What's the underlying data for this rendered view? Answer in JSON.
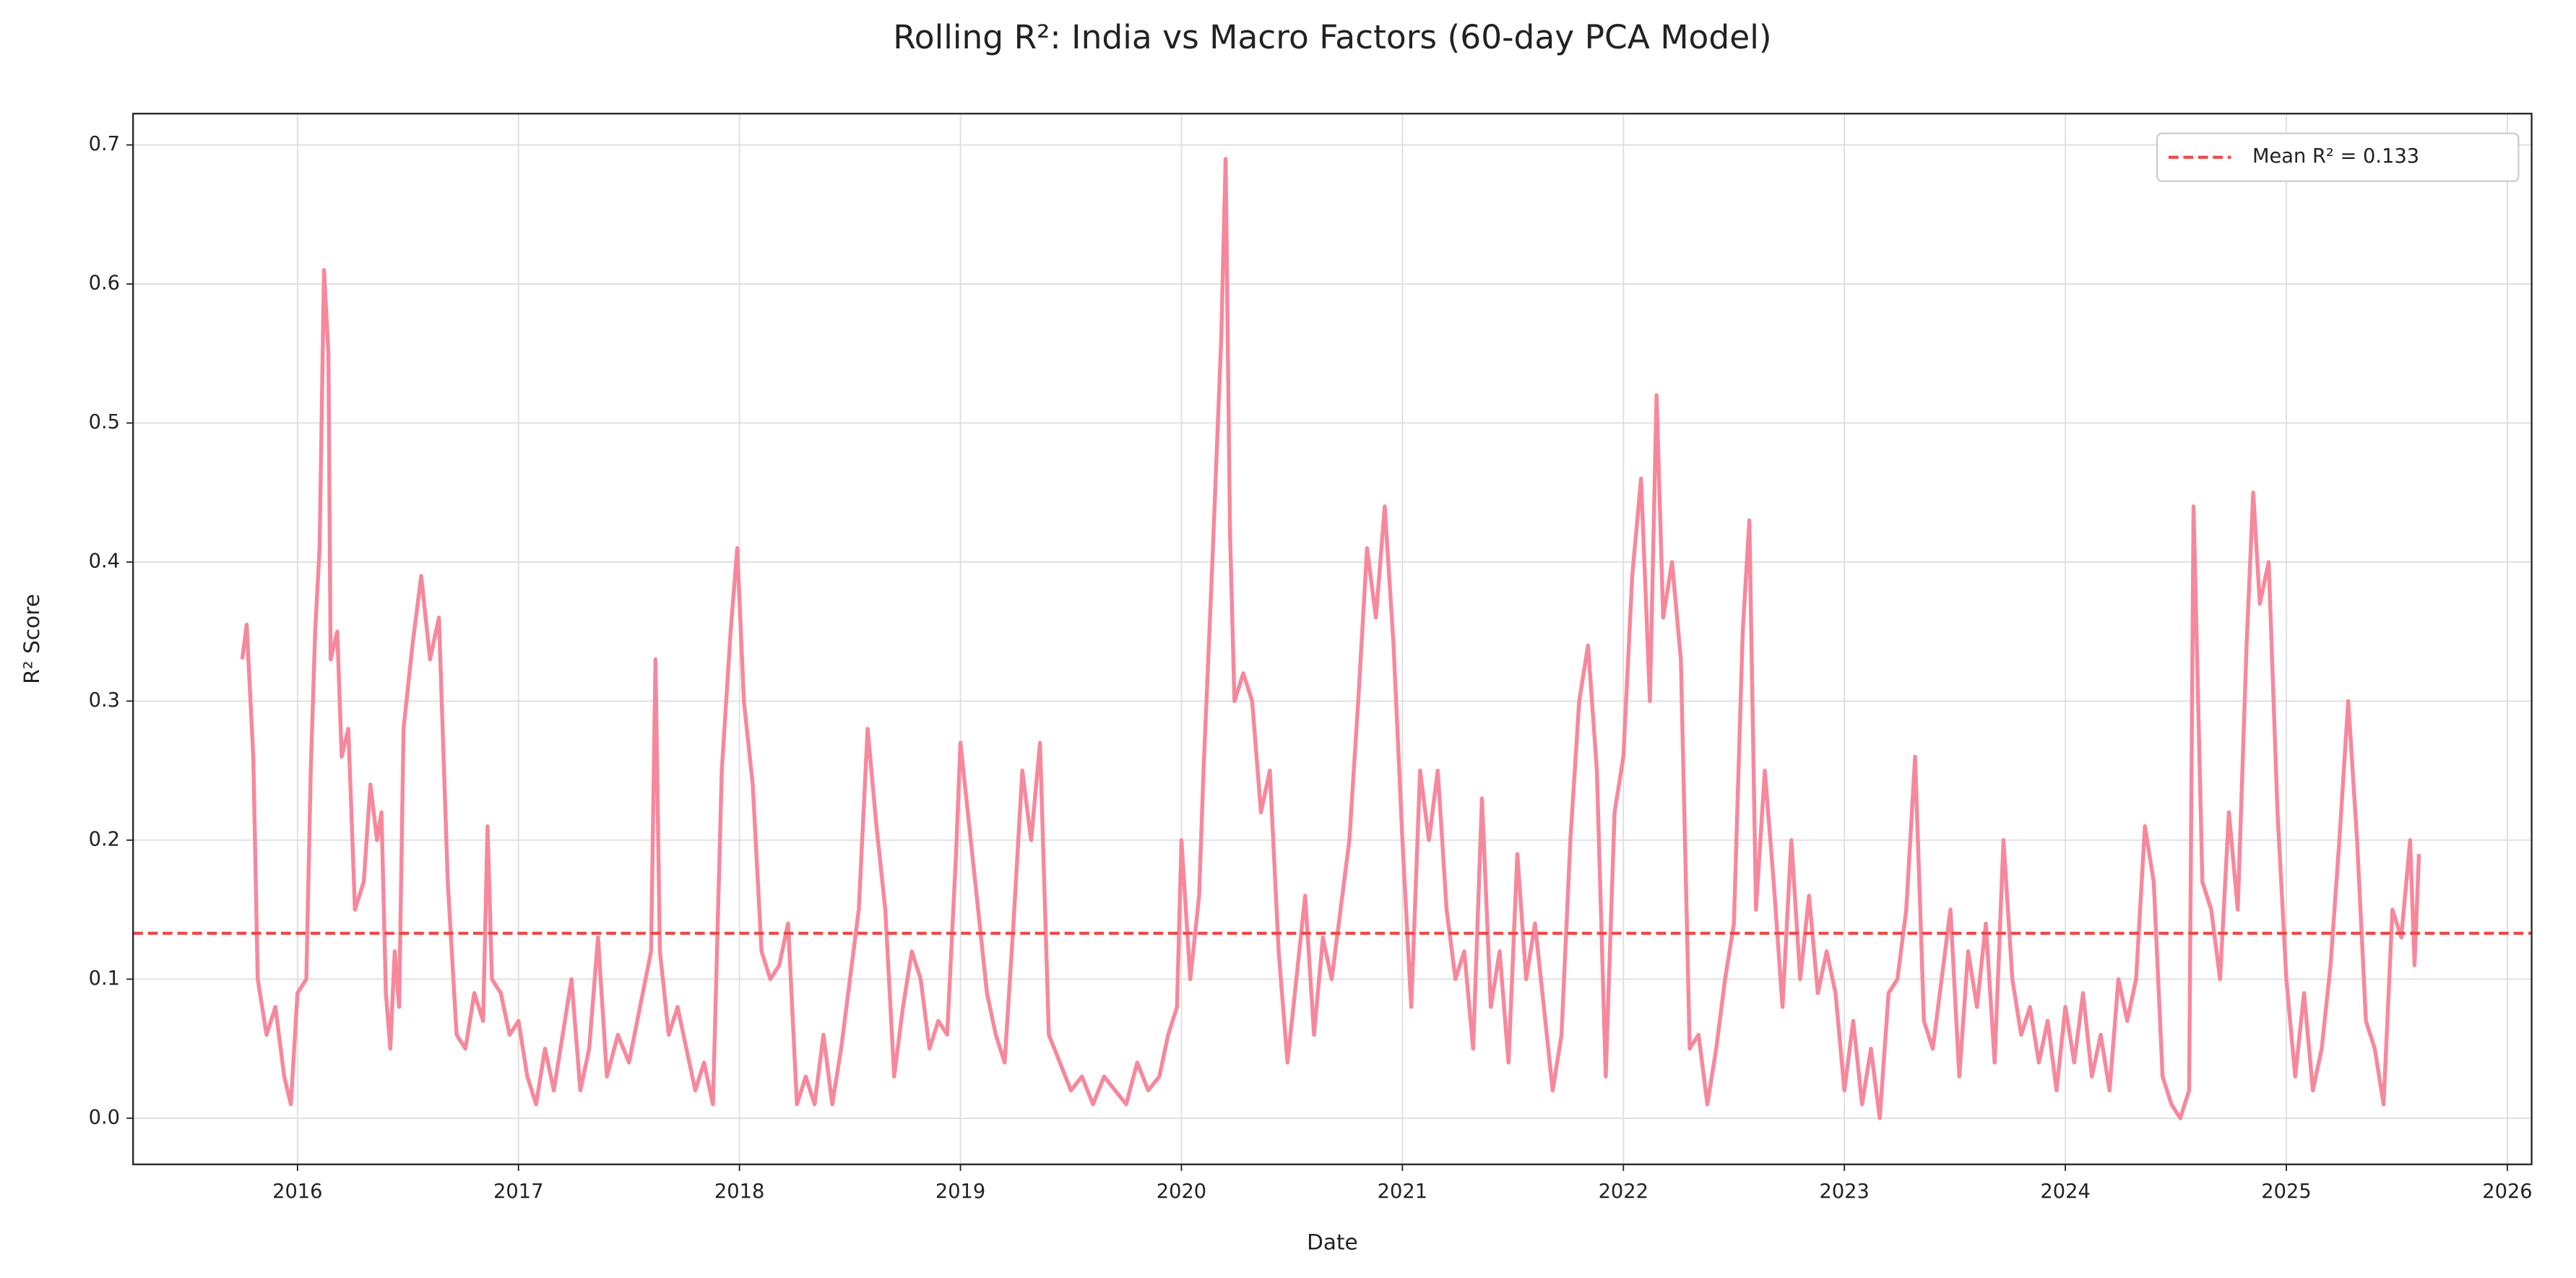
{
  "chart_data": {
    "type": "line",
    "title": "Rolling R²: India vs Macro Factors (60-day PCA Model)",
    "x_label": "Date",
    "y_label": "R² Score",
    "x": [
      2015.75,
      2015.77,
      2015.8,
      2015.82,
      2015.86,
      2015.9,
      2015.94,
      2015.97,
      2016.0,
      2016.04,
      2016.06,
      2016.08,
      2016.1,
      2016.12,
      2016.14,
      2016.15,
      2016.18,
      2016.2,
      2016.23,
      2016.26,
      2016.3,
      2016.33,
      2016.36,
      2016.38,
      2016.4,
      2016.42,
      2016.44,
      2016.46,
      2016.48,
      2016.52,
      2016.56,
      2016.6,
      2016.64,
      2016.68,
      2016.72,
      2016.76,
      2016.8,
      2016.84,
      2016.86,
      2016.88,
      2016.92,
      2016.96,
      2017.0,
      2017.04,
      2017.08,
      2017.12,
      2017.16,
      2017.2,
      2017.24,
      2017.28,
      2017.32,
      2017.36,
      2017.4,
      2017.45,
      2017.5,
      2017.55,
      2017.6,
      2017.62,
      2017.64,
      2017.68,
      2017.72,
      2017.76,
      2017.8,
      2017.84,
      2017.88,
      2017.92,
      2017.96,
      2017.99,
      2018.02,
      2018.06,
      2018.1,
      2018.14,
      2018.18,
      2018.22,
      2018.26,
      2018.3,
      2018.34,
      2018.38,
      2018.42,
      2018.46,
      2018.5,
      2018.54,
      2018.58,
      2018.62,
      2018.66,
      2018.7,
      2018.74,
      2018.78,
      2018.82,
      2018.86,
      2018.9,
      2018.94,
      2018.98,
      2019.0,
      2019.04,
      2019.08,
      2019.12,
      2019.16,
      2019.2,
      2019.24,
      2019.28,
      2019.32,
      2019.36,
      2019.4,
      2019.45,
      2019.5,
      2019.55,
      2019.6,
      2019.65,
      2019.7,
      2019.75,
      2019.8,
      2019.85,
      2019.9,
      2019.94,
      2019.98,
      2020.0,
      2020.04,
      2020.08,
      2020.1,
      2020.14,
      2020.16,
      2020.18,
      2020.2,
      2020.22,
      2020.24,
      2020.28,
      2020.32,
      2020.36,
      2020.4,
      2020.44,
      2020.48,
      2020.52,
      2020.56,
      2020.6,
      2020.64,
      2020.68,
      2020.72,
      2020.76,
      2020.8,
      2020.84,
      2020.88,
      2020.92,
      2020.96,
      2021.0,
      2021.04,
      2021.08,
      2021.12,
      2021.16,
      2021.2,
      2021.24,
      2021.28,
      2021.32,
      2021.36,
      2021.4,
      2021.44,
      2021.48,
      2021.52,
      2021.56,
      2021.6,
      2021.64,
      2021.68,
      2021.72,
      2021.76,
      2021.8,
      2021.84,
      2021.88,
      2021.92,
      2021.96,
      2022.0,
      2022.04,
      2022.08,
      2022.12,
      2022.15,
      2022.18,
      2022.22,
      2022.26,
      2022.3,
      2022.34,
      2022.38,
      2022.42,
      2022.46,
      2022.5,
      2022.54,
      2022.57,
      2022.6,
      2022.64,
      2022.68,
      2022.72,
      2022.76,
      2022.8,
      2022.84,
      2022.88,
      2022.92,
      2022.96,
      2023.0,
      2023.04,
      2023.08,
      2023.12,
      2023.16,
      2023.2,
      2023.24,
      2023.28,
      2023.32,
      2023.36,
      2023.4,
      2023.44,
      2023.48,
      2023.52,
      2023.56,
      2023.6,
      2023.64,
      2023.68,
      2023.72,
      2023.76,
      2023.8,
      2023.84,
      2023.88,
      2023.92,
      2023.96,
      2024.0,
      2024.04,
      2024.08,
      2024.12,
      2024.16,
      2024.2,
      2024.24,
      2024.28,
      2024.32,
      2024.36,
      2024.4,
      2024.44,
      2024.48,
      2024.52,
      2024.56,
      2024.58,
      2024.62,
      2024.66,
      2024.7,
      2024.74,
      2024.78,
      2024.82,
      2024.85,
      2024.88,
      2024.92,
      2024.96,
      2025.0,
      2025.04,
      2025.08,
      2025.12,
      2025.16,
      2025.2,
      2025.24,
      2025.28,
      2025.32,
      2025.36,
      2025.4,
      2025.44,
      2025.48,
      2025.52,
      2025.56,
      2025.58,
      2025.6
    ],
    "series": [
      {
        "color": "#f7889c",
        "values": [
          0.33,
          0.355,
          0.26,
          0.1,
          0.06,
          0.08,
          0.03,
          0.01,
          0.09,
          0.1,
          0.25,
          0.35,
          0.41,
          0.61,
          0.55,
          0.33,
          0.35,
          0.26,
          0.28,
          0.15,
          0.17,
          0.24,
          0.2,
          0.22,
          0.09,
          0.05,
          0.12,
          0.08,
          0.28,
          0.34,
          0.39,
          0.33,
          0.36,
          0.17,
          0.06,
          0.05,
          0.09,
          0.07,
          0.21,
          0.1,
          0.09,
          0.06,
          0.07,
          0.03,
          0.01,
          0.05,
          0.02,
          0.06,
          0.1,
          0.02,
          0.05,
          0.13,
          0.03,
          0.06,
          0.04,
          0.08,
          0.12,
          0.33,
          0.12,
          0.06,
          0.08,
          0.05,
          0.02,
          0.04,
          0.01,
          0.25,
          0.35,
          0.41,
          0.3,
          0.24,
          0.12,
          0.1,
          0.11,
          0.14,
          0.01,
          0.03,
          0.01,
          0.06,
          0.01,
          0.05,
          0.1,
          0.15,
          0.28,
          0.21,
          0.15,
          0.03,
          0.08,
          0.12,
          0.1,
          0.05,
          0.07,
          0.06,
          0.19,
          0.27,
          0.21,
          0.15,
          0.09,
          0.06,
          0.04,
          0.14,
          0.25,
          0.2,
          0.27,
          0.06,
          0.04,
          0.02,
          0.03,
          0.01,
          0.03,
          0.02,
          0.01,
          0.04,
          0.02,
          0.03,
          0.06,
          0.08,
          0.2,
          0.1,
          0.16,
          0.25,
          0.4,
          0.48,
          0.56,
          0.69,
          0.42,
          0.3,
          0.32,
          0.3,
          0.22,
          0.25,
          0.12,
          0.04,
          0.1,
          0.16,
          0.06,
          0.13,
          0.1,
          0.15,
          0.2,
          0.3,
          0.41,
          0.36,
          0.44,
          0.34,
          0.2,
          0.08,
          0.25,
          0.2,
          0.25,
          0.15,
          0.1,
          0.12,
          0.05,
          0.23,
          0.08,
          0.12,
          0.04,
          0.19,
          0.1,
          0.14,
          0.08,
          0.02,
          0.06,
          0.2,
          0.3,
          0.34,
          0.25,
          0.03,
          0.22,
          0.26,
          0.39,
          0.46,
          0.3,
          0.52,
          0.36,
          0.4,
          0.33,
          0.05,
          0.06,
          0.01,
          0.05,
          0.1,
          0.14,
          0.35,
          0.43,
          0.15,
          0.25,
          0.17,
          0.08,
          0.2,
          0.1,
          0.16,
          0.09,
          0.12,
          0.09,
          0.02,
          0.07,
          0.01,
          0.05,
          0.0,
          0.09,
          0.1,
          0.15,
          0.26,
          0.07,
          0.05,
          0.1,
          0.15,
          0.03,
          0.12,
          0.08,
          0.14,
          0.04,
          0.2,
          0.1,
          0.06,
          0.08,
          0.04,
          0.07,
          0.02,
          0.08,
          0.04,
          0.09,
          0.03,
          0.06,
          0.02,
          0.1,
          0.07,
          0.1,
          0.21,
          0.17,
          0.03,
          0.01,
          0.0,
          0.02,
          0.44,
          0.17,
          0.15,
          0.1,
          0.22,
          0.15,
          0.34,
          0.45,
          0.37,
          0.4,
          0.22,
          0.1,
          0.03,
          0.09,
          0.02,
          0.05,
          0.11,
          0.2,
          0.3,
          0.2,
          0.07,
          0.05,
          0.01,
          0.15,
          0.13,
          0.2,
          0.11,
          0.19
        ]
      }
    ],
    "hlines": [
      {
        "value": 0.133,
        "label": "Mean R² = 0.133",
        "color": "#f04444"
      }
    ],
    "xlim": [
      2015.256,
      2026.11
    ],
    "xticks": [
      2016,
      2017,
      2018,
      2019,
      2020,
      2021,
      2022,
      2023,
      2024,
      2025,
      2026
    ],
    "ylim": [
      -0.0332,
      0.7225
    ],
    "yticks": [
      {
        "value": 0,
        "label": "0.0"
      },
      0.1,
      0.2,
      0.3,
      0.4,
      0.5,
      0.6,
      0.7
    ],
    "grid": true,
    "legend": "upper right"
  }
}
